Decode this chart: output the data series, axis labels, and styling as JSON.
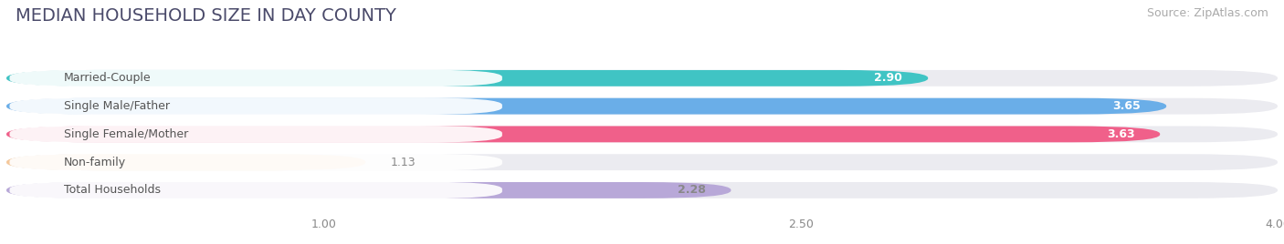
{
  "title": "MEDIAN HOUSEHOLD SIZE IN DAY COUNTY",
  "source": "Source: ZipAtlas.com",
  "categories": [
    "Married-Couple",
    "Single Male/Father",
    "Single Female/Mother",
    "Non-family",
    "Total Households"
  ],
  "values": [
    2.9,
    3.65,
    3.63,
    1.13,
    2.28
  ],
  "bar_colors": [
    "#40c4c4",
    "#6aaee8",
    "#f0608a",
    "#f5c89a",
    "#b8a8d8"
  ],
  "bar_bg_color": "#ebebf0",
  "value_label_colors": [
    "white",
    "white",
    "white",
    "#888888",
    "#888888"
  ],
  "cat_label_color": "#555555",
  "xlim": [
    0,
    4.0
  ],
  "xticks": [
    1.0,
    2.5,
    4.0
  ],
  "title_fontsize": 14,
  "source_fontsize": 9,
  "bar_height": 0.58,
  "fig_width": 14.06,
  "fig_height": 2.68,
  "background_color": "#ffffff",
  "dpi": 100
}
